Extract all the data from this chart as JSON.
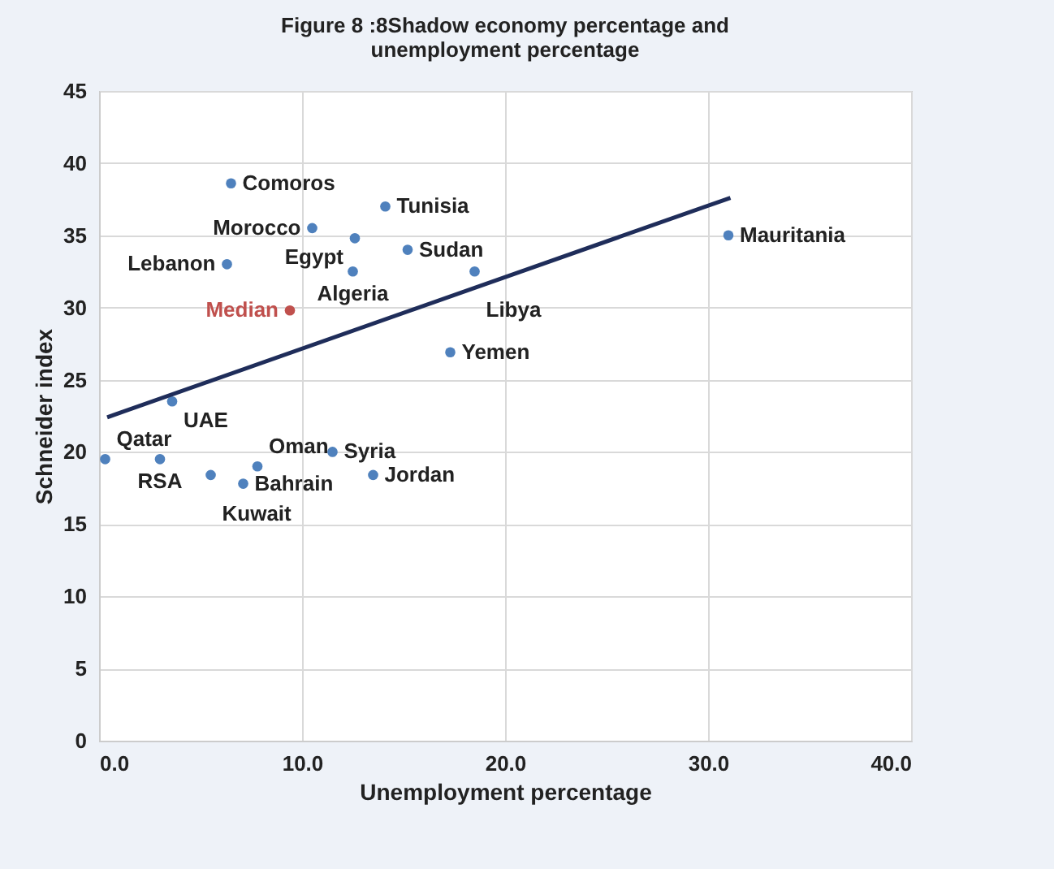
{
  "chart_data": {
    "type": "scatter",
    "title": "Figure 8 :8Shadow economy percentage and unemployment percentage",
    "xlabel": "Unemployment percentage",
    "ylabel": "Schneider index",
    "xlim": [
      0,
      40
    ],
    "xticks": [
      {
        "value": 0,
        "label": "0.0"
      },
      {
        "value": 10,
        "label": "10.0"
      },
      {
        "value": 20,
        "label": "20.0"
      },
      {
        "value": 30,
        "label": "30.0"
      },
      {
        "value": 40,
        "label": "40.0"
      }
    ],
    "ylim": [
      0,
      45
    ],
    "yticks": [
      0,
      5,
      10,
      15,
      20,
      25,
      30,
      35,
      40,
      45
    ],
    "grid": true,
    "marker": "circle",
    "series": [
      {
        "color": "#4f81bd",
        "x": [
          6.5,
          14.1,
          10.5,
          12.6,
          15.2,
          6.3,
          12.5,
          18.5,
          3.6,
          17.3,
          31,
          0.3,
          3,
          5.5,
          7.1,
          7.8,
          11.5,
          13.5
        ],
        "values": [
          38.6,
          37,
          35.5,
          34.8,
          34,
          33,
          32.5,
          32.5,
          23.5,
          26.9,
          35,
          19.5,
          19.5,
          18.4,
          17.8,
          19,
          20,
          18.4
        ]
      },
      {
        "name": "Median",
        "color": "#c0504d",
        "x": [
          9.4
        ],
        "values": [
          29.8
        ]
      },
      {
        "type": "line",
        "marker": "none",
        "color": "#1f2d5a",
        "x": [
          0.4,
          31.1
        ],
        "values": [
          22.4,
          37.6
        ]
      }
    ],
    "annotations": [
      {
        "text": "Comoros",
        "x": 6.5,
        "y": 38.6
      },
      {
        "text": "Tunisia",
        "x": 14.1,
        "y": 37
      },
      {
        "text": "Morocco",
        "x": 10.5,
        "y": 35.5
      },
      {
        "text": "Egypt",
        "x": 12.6,
        "y": 34.8
      },
      {
        "text": "Sudan",
        "x": 15.2,
        "y": 34
      },
      {
        "text": "Lebanon",
        "x": 6.3,
        "y": 33
      },
      {
        "text": "Algeria",
        "x": 12.5,
        "y": 32.5
      },
      {
        "text": "Libya",
        "x": 18.5,
        "y": 32.5
      },
      {
        "text": "UAE",
        "x": 3.6,
        "y": 23.5
      },
      {
        "text": "Yemen",
        "x": 17.3,
        "y": 26.9
      },
      {
        "text": "Mauritania",
        "x": 31,
        "y": 35
      },
      {
        "text": "Qatar",
        "x": 0.3,
        "y": 19.5
      },
      {
        "text": "RSA",
        "x": 3,
        "y": 19.5
      },
      {
        "text": "Kuwait",
        "x": 5.5,
        "y": 18.4
      },
      {
        "text": "Bahrain",
        "x": 7.1,
        "y": 17.8
      },
      {
        "text": "Oman",
        "x": 7.8,
        "y": 19
      },
      {
        "text": "Syria",
        "x": 11.5,
        "y": 20
      },
      {
        "text": "Jordan",
        "x": 13.5,
        "y": 18.4
      }
    ]
  }
}
